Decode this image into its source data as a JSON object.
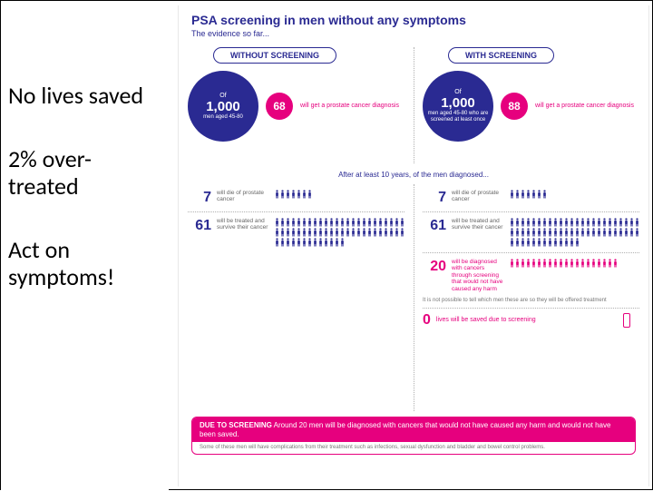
{
  "summary": {
    "line1": "No lives saved",
    "line2": "2% over-treated",
    "line3": "Act on symptoms!"
  },
  "header": {
    "title": "PSA screening in men without any symptoms",
    "subtitle": "The evidence so far..."
  },
  "mid_banner": "After at least 10 years, of the men diagnosed...",
  "without": {
    "pill": "WITHOUT SCREENING",
    "of": "Of",
    "cohort": "1,000",
    "cohort_sub": "men aged 45-80",
    "diag_n": "68",
    "diag_text": "will get a prostate cancer diagnosis",
    "die_n": "7",
    "die_label": "will die of prostate cancer",
    "surv_n": "61",
    "surv_label": "will be treated and survive their cancer"
  },
  "with": {
    "pill": "WITH SCREENING",
    "of": "Of",
    "cohort": "1,000",
    "cohort_sub": "men aged 45-80 who are screened at least once",
    "diag_n": "88",
    "diag_text": "will get a prostate cancer diagnosis",
    "die_n": "7",
    "die_label": "will die of prostate cancer",
    "surv_n": "61",
    "surv_label": "will be treated and survive their cancer",
    "over_n": "20",
    "over_label": "will be diagnosed with cancers through screening that would not have caused any harm",
    "over_note": "It is not possible to tell which men these are so they will be offered treatment",
    "zero_n": "0",
    "zero_label": "lives will be saved due to screening"
  },
  "footer": {
    "head_bold": "DUE TO SCREENING",
    "head_rest": "Around 20 men will be diagnosed with cancers that would not have caused any harm and would not have been saved.",
    "body": "Some of these men will have complications from their treatment such as infections, sexual dysfunction and bladder and bowel control problems."
  },
  "colors": {
    "navy": "#2a2a92",
    "pink": "#e6007e",
    "grey": "#777777"
  },
  "people_counts": {
    "die": 7,
    "survive": 61,
    "over": 20
  }
}
